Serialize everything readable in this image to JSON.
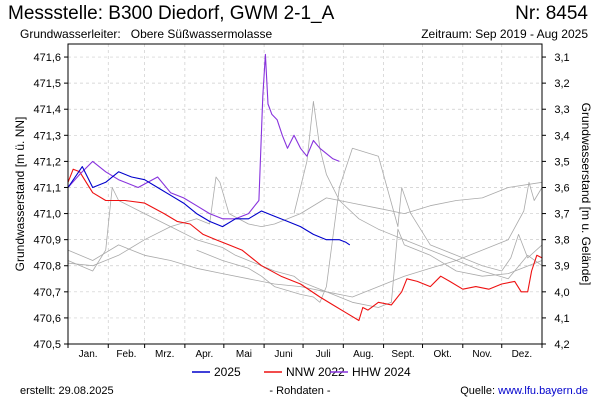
{
  "header": {
    "title": "Messstelle: B300 Diedorf, GWM 2-1_A",
    "number": "Nr: 8454",
    "aquifer_label": "Grundwasserleiter:",
    "aquifer_value": "Obere Süßwassermolasse",
    "period": "Zeitraum: Sep 2019 - Aug 2025"
  },
  "footer": {
    "created": "erstellt:  29.08.2025",
    "raw": "- Rohdaten -",
    "source_label": "Quelle:",
    "source_value": "www.lfu.bayern.de"
  },
  "chart_data": {
    "type": "line",
    "ylabel": "Grundwasserstand [m ü. NN]",
    "y2label": "Grundwasserstand [m u. Gelände]",
    "ylim": [
      470.5,
      471.65
    ],
    "yticks": [
      "470,5",
      "470,6",
      "470,7",
      "470,8",
      "470,9",
      "471,0",
      "471,1",
      "471,2",
      "471,3",
      "471,4",
      "471,5",
      "471,6"
    ],
    "ytick_values": [
      470.5,
      470.6,
      470.7,
      470.8,
      470.9,
      471.0,
      471.1,
      471.2,
      471.3,
      471.4,
      471.5,
      471.6
    ],
    "y2ticks": [
      "3,1",
      "3,2",
      "3,3",
      "3,4",
      "3,5",
      "3,6",
      "3,7",
      "3,8",
      "3,9",
      "4,0",
      "4,1",
      "4,2"
    ],
    "y2tick_values": [
      471.6,
      471.5,
      471.4,
      471.3,
      471.2,
      471.1,
      471.0,
      470.9,
      470.8,
      470.7,
      470.6,
      470.5
    ],
    "xlim": [
      1,
      366
    ],
    "months": [
      "Jan.",
      "Feb.",
      "Mrz.",
      "Apr.",
      "Mai",
      "Juni",
      "Juli",
      "Aug.",
      "Sept.",
      "Okt.",
      "Nov.",
      "Dez."
    ],
    "grid": true,
    "legend": {
      "position": "bottom",
      "entries": [
        {
          "name": "2025",
          "color": "#0000cc"
        },
        {
          "name": "NNW 2022",
          "color": "#ee1111"
        },
        {
          "name": "HHW 2024",
          "color": "#8833dd"
        }
      ]
    },
    "series": [
      {
        "name": "2025",
        "color": "#0000cc",
        "x": [
          1,
          12,
          20,
          30,
          40,
          50,
          60,
          70,
          80,
          90,
          100,
          110,
          120,
          130,
          140,
          150,
          160,
          170,
          180,
          190,
          200,
          210,
          215,
          218
        ],
        "y": [
          471.1,
          471.18,
          471.1,
          471.12,
          471.16,
          471.14,
          471.13,
          471.1,
          471.07,
          471.04,
          471.0,
          470.97,
          470.95,
          470.98,
          470.98,
          471.01,
          470.99,
          470.97,
          470.95,
          470.92,
          470.9,
          470.9,
          470.89,
          470.88
        ]
      },
      {
        "name": "NNW 2022",
        "color": "#ee1111",
        "x": [
          1,
          5,
          10,
          15,
          20,
          30,
          45,
          60,
          75,
          85,
          95,
          105,
          115,
          125,
          135,
          150,
          165,
          180,
          195,
          205,
          215,
          225,
          228,
          232,
          240,
          250,
          258,
          262,
          270,
          280,
          288,
          295,
          305,
          315,
          325,
          335,
          345,
          350,
          355,
          358,
          362,
          366
        ],
        "y": [
          471.12,
          471.17,
          471.16,
          471.12,
          471.08,
          471.05,
          471.05,
          471.04,
          471.0,
          470.97,
          470.96,
          470.92,
          470.9,
          470.88,
          470.86,
          470.8,
          470.76,
          470.73,
          470.68,
          470.65,
          470.62,
          470.59,
          470.64,
          470.63,
          470.66,
          470.65,
          470.7,
          470.75,
          470.74,
          470.72,
          470.76,
          470.74,
          470.71,
          470.72,
          470.71,
          470.73,
          470.74,
          470.7,
          470.7,
          470.78,
          470.84,
          470.83
        ]
      },
      {
        "name": "HHW 2024",
        "color": "#8833dd",
        "x": [
          1,
          10,
          20,
          30,
          40,
          55,
          70,
          80,
          90,
          100,
          110,
          120,
          130,
          140,
          148,
          151,
          153,
          155,
          158,
          162,
          166,
          170,
          175,
          180,
          185,
          190,
          195,
          200,
          205,
          210
        ],
        "y": [
          471.1,
          471.15,
          471.2,
          471.16,
          471.13,
          471.1,
          471.14,
          471.08,
          471.06,
          471.03,
          471.0,
          470.98,
          470.98,
          471.0,
          471.05,
          471.45,
          471.61,
          471.42,
          471.38,
          471.36,
          471.3,
          471.25,
          471.3,
          471.25,
          471.22,
          471.28,
          471.25,
          471.23,
          471.21,
          471.2
        ]
      },
      {
        "name": "",
        "color": "#aaaaaa",
        "x": [
          1,
          20,
          40,
          60,
          80,
          100,
          120,
          140,
          160,
          180,
          200,
          220,
          240,
          260,
          280,
          300,
          320,
          340,
          352,
          356,
          360,
          366
        ],
        "y": [
          470.86,
          470.82,
          470.88,
          470.84,
          470.82,
          470.79,
          470.77,
          470.75,
          470.73,
          470.72,
          470.7,
          470.68,
          470.72,
          470.76,
          470.79,
          470.82,
          470.86,
          470.9,
          471.01,
          471.12,
          471.05,
          471.1
        ]
      },
      {
        "name": "",
        "color": "#aaaaaa",
        "x": [
          1,
          20,
          40,
          60,
          80,
          100,
          110,
          115,
          118,
          125,
          140,
          150,
          160,
          180,
          200,
          220,
          240,
          260,
          280,
          300,
          320,
          340,
          366
        ],
        "y": [
          470.81,
          470.8,
          470.84,
          470.9,
          470.95,
          470.98,
          470.96,
          471.14,
          471.12,
          471.0,
          470.96,
          470.95,
          470.96,
          471.0,
          471.06,
          471.04,
          471.02,
          471.0,
          471.03,
          471.05,
          471.06,
          471.1,
          471.12
        ]
      },
      {
        "name": "",
        "color": "#aaaaaa",
        "x": [
          1,
          20,
          30,
          35,
          40,
          60,
          80,
          100,
          120,
          130,
          140,
          160,
          175,
          180,
          190,
          200,
          220,
          240,
          250,
          255,
          260,
          280,
          300,
          320,
          340,
          366
        ],
        "y": [
          470.82,
          470.78,
          470.86,
          471.1,
          471.05,
          471.0,
          470.95,
          470.9,
          470.87,
          470.84,
          470.82,
          470.78,
          470.76,
          470.74,
          470.72,
          470.7,
          470.66,
          470.64,
          470.66,
          470.94,
          470.88,
          470.84,
          470.78,
          470.76,
          470.77,
          470.82
        ]
      },
      {
        "name": "",
        "color": "#aaaaaa",
        "x": [
          100,
          120,
          140,
          150,
          160,
          180,
          190,
          195,
          200,
          210,
          220,
          240,
          255,
          258,
          265,
          280,
          300,
          320,
          335,
          342,
          348,
          355,
          366
        ],
        "y": [
          470.86,
          470.82,
          470.79,
          470.76,
          470.72,
          470.69,
          470.68,
          470.66,
          470.72,
          471.1,
          471.25,
          471.22,
          470.95,
          471.1,
          471.0,
          470.88,
          470.84,
          470.8,
          470.78,
          470.83,
          470.92,
          470.83,
          470.88
        ]
      },
      {
        "name": "",
        "color": "#aaaaaa",
        "x": [
          175,
          185,
          190,
          195,
          200,
          210,
          225,
          240,
          260,
          280,
          300,
          320,
          340,
          355,
          366
        ],
        "y": [
          471.0,
          471.2,
          471.43,
          471.25,
          471.15,
          471.05,
          470.98,
          470.94,
          470.9,
          470.86,
          470.82,
          470.78,
          470.75,
          470.84,
          470.8
        ]
      }
    ]
  }
}
